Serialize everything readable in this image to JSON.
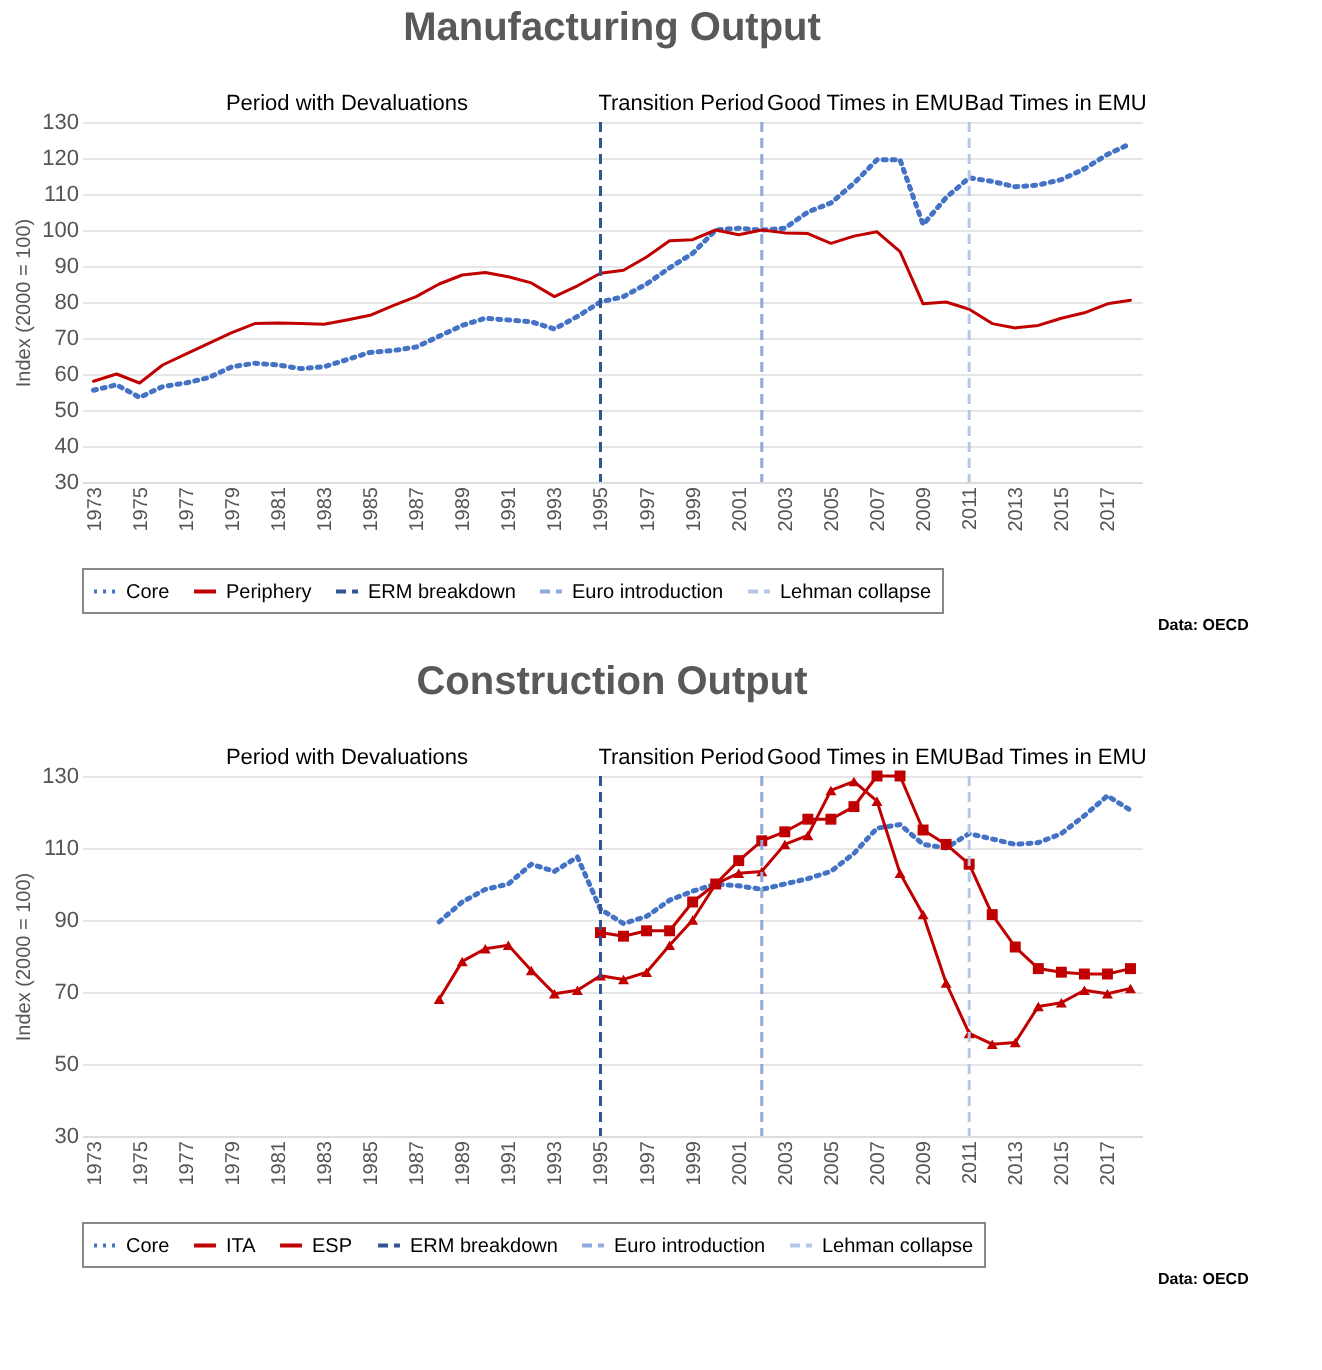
{
  "chart_data": [
    {
      "type": "line",
      "title": "Manufacturing Output",
      "ylabel": "Index (2000 = 100)",
      "x": [
        1973,
        1974,
        1975,
        1976,
        1977,
        1978,
        1979,
        1980,
        1981,
        1982,
        1983,
        1984,
        1985,
        1986,
        1987,
        1988,
        1989,
        1990,
        1991,
        1992,
        1993,
        1994,
        1995,
        1996,
        1997,
        1998,
        1999,
        2000,
        2001,
        2002,
        2003,
        2004,
        2005,
        2006,
        2007,
        2008,
        2009,
        2010,
        2011,
        2012,
        2013,
        2014,
        2015,
        2016,
        2017,
        2018
      ],
      "series": [
        {
          "name": "Core",
          "color": "#4472c4",
          "line_style": "dotted",
          "values": [
            55.5,
            57,
            53.5,
            56.5,
            57.5,
            59,
            62,
            63,
            62.5,
            61.5,
            62,
            64,
            66,
            66.5,
            67.5,
            70.5,
            73.5,
            75.5,
            75,
            74.5,
            72.5,
            76,
            80,
            81.5,
            85,
            89.5,
            93.5,
            100,
            100.5,
            100,
            100.5,
            105,
            107.5,
            113,
            119.5,
            119.5,
            101.5,
            109,
            114.5,
            113.5,
            112,
            112.5,
            114,
            117,
            121,
            124
          ]
        },
        {
          "name": "Periphery",
          "color": "#c00000",
          "line_style": "solid",
          "values": [
            58,
            60,
            57.5,
            62.5,
            65.5,
            68.5,
            71.5,
            74,
            74.2,
            74,
            73.8,
            75,
            76.3,
            79,
            81.5,
            85,
            87.5,
            88.2,
            87,
            85.3,
            81.5,
            84.5,
            88,
            88.8,
            92.5,
            97,
            97.3,
            100,
            98.7,
            100,
            99.2,
            99,
            96.3,
            98.3,
            99.5,
            94,
            79.5,
            80,
            78,
            74,
            72.8,
            73.5,
            75.5,
            77,
            79.5,
            80.5
          ]
        }
      ],
      "ref_lines": [
        {
          "axis": "x",
          "value": 1995,
          "label": "ERM breakdown",
          "color": "#2f5597",
          "line_style": "dashed"
        },
        {
          "axis": "x",
          "value": 2002,
          "label": "Euro introduction",
          "color": "#8faadc",
          "line_style": "dashed"
        },
        {
          "axis": "x",
          "value": 2011,
          "label": "Lehman collapse",
          "color": "#b4c7e7",
          "line_style": "dashed"
        }
      ],
      "annotations": [
        "Period with Devaluations",
        "Transition Period",
        "Good Times in EMU",
        "Bad Times in EMU",
        "Data: OECD"
      ],
      "xlim": [
        1972.5,
        2018.5
      ],
      "xticks": [
        1973,
        1975,
        1977,
        1979,
        1981,
        1983,
        1985,
        1987,
        1989,
        1991,
        1993,
        1995,
        1997,
        1999,
        2001,
        2003,
        2005,
        2007,
        2009,
        2011,
        2013,
        2015,
        2017
      ],
      "ylim": [
        30,
        130
      ],
      "yticks": [
        30,
        40,
        50,
        60,
        70,
        80,
        90,
        100,
        110,
        120,
        130
      ],
      "grid": "y",
      "legend": "bottom"
    },
    {
      "type": "line",
      "title": "Construction Output",
      "ylabel": "Index (2000 = 100)",
      "series": [
        {
          "name": "Core",
          "color": "#4472c4",
          "line_style": "dotted",
          "x": [
            1988,
            1989,
            1990,
            1991,
            1992,
            1993,
            1994,
            1995,
            1996,
            1997,
            1998,
            1999,
            2000,
            2001,
            2002,
            2003,
            2004,
            2005,
            2006,
            2007,
            2008,
            2009,
            2010,
            2011,
            2012,
            2013,
            2014,
            2015,
            2016,
            2017,
            2018
          ],
          "values": [
            89.5,
            95,
            98.5,
            100,
            105.5,
            103.5,
            107.5,
            93,
            89,
            91,
            95.5,
            98,
            100,
            99.5,
            98.5,
            100,
            101.5,
            103.5,
            108.5,
            115.5,
            116.5,
            111,
            110,
            114,
            112.5,
            111,
            111.5,
            114,
            119,
            124.5,
            120.5
          ]
        },
        {
          "name": "ITA",
          "color": "#c00000",
          "line_style": "solid",
          "marker": "square",
          "x": [
            1995,
            1996,
            1997,
            1998,
            1999,
            2000,
            2001,
            2002,
            2003,
            2004,
            2005,
            2006,
            2007,
            2008,
            2009,
            2010,
            2011,
            2012,
            2013,
            2014,
            2015,
            2016,
            2017,
            2018
          ],
          "values": [
            86.5,
            85.5,
            87,
            87,
            95,
            100,
            106.5,
            112,
            114.5,
            118,
            118,
            121.5,
            130,
            130,
            115,
            111,
            105.5,
            91.5,
            82.5,
            76.5,
            75.5,
            75,
            75,
            76.5
          ]
        },
        {
          "name": "ESP",
          "color": "#c00000",
          "line_style": "solid",
          "marker": "triangle",
          "x": [
            1988,
            1989,
            1990,
            1991,
            1992,
            1993,
            1994,
            1995,
            1996,
            1997,
            1998,
            1999,
            2000,
            2001,
            2002,
            2003,
            2004,
            2005,
            2006,
            2007,
            2008,
            2009,
            2010,
            2011,
            2012,
            2013,
            2014,
            2015,
            2016,
            2017,
            2018
          ],
          "values": [
            68,
            78.5,
            82,
            83,
            76,
            69.5,
            70.5,
            74.5,
            73.5,
            75.5,
            83,
            90,
            100,
            103,
            103.5,
            111,
            113.5,
            126,
            128.5,
            123,
            103,
            91.5,
            72.5,
            58.5,
            55.5,
            56,
            66,
            67,
            70.5,
            69.5,
            71
          ]
        }
      ],
      "ref_lines": [
        {
          "axis": "x",
          "value": 1995,
          "label": "ERM breakdown",
          "color": "#2f5597",
          "line_style": "dashed"
        },
        {
          "axis": "x",
          "value": 2002,
          "label": "Euro introduction",
          "color": "#8faadc",
          "line_style": "dashed"
        },
        {
          "axis": "x",
          "value": 2011,
          "label": "Lehman collapse",
          "color": "#b4c7e7",
          "line_style": "dashed"
        }
      ],
      "annotations": [
        "Period with Devaluations",
        "Transition Period",
        "Good Times in EMU",
        "Bad Times in EMU",
        "Data: OECD"
      ],
      "xlim": [
        1972.5,
        2018.5
      ],
      "xticks": [
        1973,
        1975,
        1977,
        1979,
        1981,
        1983,
        1985,
        1987,
        1989,
        1991,
        1993,
        1995,
        1997,
        1999,
        2001,
        2003,
        2005,
        2007,
        2009,
        2011,
        2013,
        2015,
        2017
      ],
      "ylim": [
        30,
        130
      ],
      "yticks": [
        30,
        50,
        70,
        90,
        110,
        130
      ],
      "grid": "y",
      "legend": "bottom"
    }
  ]
}
